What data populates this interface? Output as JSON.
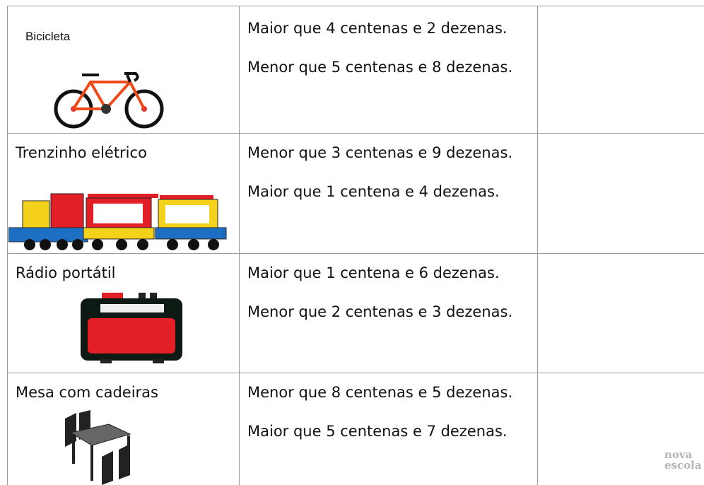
{
  "table": {
    "rows": [
      {
        "item": "Bicicleta",
        "clues": [
          "Maior que 4 centenas e 2 dezenas.",
          "Menor que 5 centenas e 8 dezenas."
        ]
      },
      {
        "item": "Trenzinho elétrico",
        "clues": [
          "Menor que 3 centenas e 9 dezenas.",
          "Maior que 1 centena e 4 dezenas."
        ]
      },
      {
        "item": "Rádio portátil",
        "clues": [
          "Maior que 1 centena e 6 dezenas.",
          "Menor que 2 centenas e 3 dezenas."
        ]
      },
      {
        "item": "Mesa com cadeiras",
        "clues": [
          "Menor que 8 centenas e 5 dezenas.",
          "Maior que 5 centenas e 7 dezenas."
        ]
      }
    ]
  },
  "watermark": [
    "nova",
    "escola"
  ]
}
